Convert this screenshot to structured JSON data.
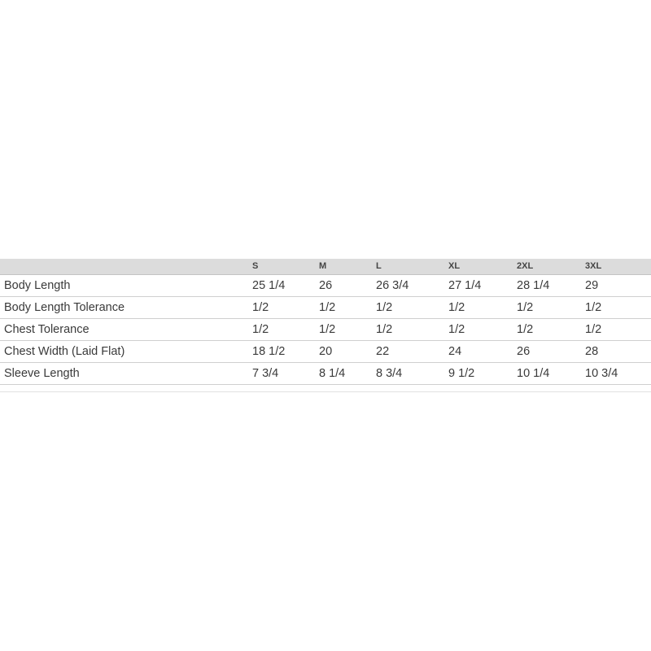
{
  "table": {
    "headers": [
      "",
      "S",
      "M",
      "L",
      "XL",
      "2XL",
      "3XL"
    ],
    "rows": [
      {
        "label": "Body Length",
        "values": [
          "25 1/4",
          "26",
          "26 3/4",
          "27 1/4",
          "28 1/4",
          "29"
        ]
      },
      {
        "label": "Body Length Tolerance",
        "values": [
          "1/2",
          "1/2",
          "1/2",
          "1/2",
          "1/2",
          "1/2"
        ]
      },
      {
        "label": "Chest Tolerance",
        "values": [
          "1/2",
          "1/2",
          "1/2",
          "1/2",
          "1/2",
          "1/2"
        ]
      },
      {
        "label": "Chest Width (Laid Flat)",
        "values": [
          "18 1/2",
          "20",
          "22",
          "24",
          "26",
          "28"
        ]
      },
      {
        "label": "Sleeve Length",
        "values": [
          "7 3/4",
          "8 1/4",
          "8 3/4",
          "9 1/2",
          "10 1/4",
          "10 3/4"
        ]
      }
    ]
  }
}
